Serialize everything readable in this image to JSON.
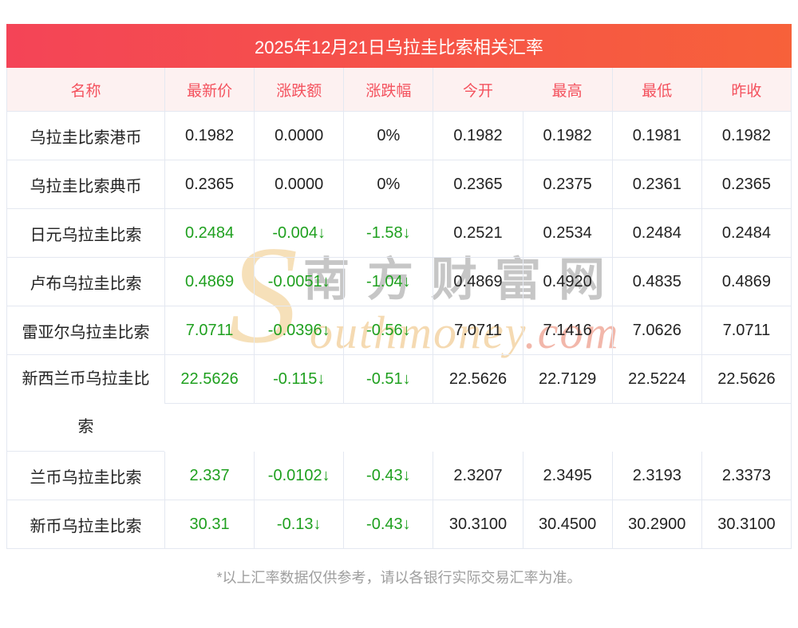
{
  "banner": {
    "title": "2025年12月21日乌拉圭比索相关汇率"
  },
  "table": {
    "columns": [
      "名称",
      "最新价",
      "涨跌额",
      "涨跌幅",
      "今开",
      "最高",
      "最低",
      "昨收"
    ],
    "rows": [
      {
        "name": "乌拉圭比索港币",
        "latest": "0.1982",
        "change": "0.0000",
        "change_pct": "0%",
        "open": "0.1982",
        "high": "0.1982",
        "low": "0.1981",
        "prev_close": "0.1982",
        "trend": "flat"
      },
      {
        "name": "乌拉圭比索典币",
        "latest": "0.2365",
        "change": "0.0000",
        "change_pct": "0%",
        "open": "0.2365",
        "high": "0.2375",
        "low": "0.2361",
        "prev_close": "0.2365",
        "trend": "flat"
      },
      {
        "name": "日元乌拉圭比索",
        "latest": "0.2484",
        "change": "-0.004↓",
        "change_pct": "-1.58↓",
        "open": "0.2521",
        "high": "0.2534",
        "low": "0.2484",
        "prev_close": "0.2484",
        "trend": "down"
      },
      {
        "name": "卢布乌拉圭比索",
        "latest": "0.4869",
        "change": "-0.0051↓",
        "change_pct": "-1.04↓",
        "open": "0.4869",
        "high": "0.4920",
        "low": "0.4835",
        "prev_close": "0.4869",
        "trend": "down"
      },
      {
        "name": "雷亚尔乌拉圭比索",
        "latest": "7.0711",
        "change": "-0.0396↓",
        "change_pct": "-0.56↓",
        "open": "7.0711",
        "high": "7.1416",
        "low": "7.0626",
        "prev_close": "7.0711",
        "trend": "down"
      },
      {
        "name": "新西兰币乌拉圭比索",
        "latest": "22.5626",
        "change": "-0.115↓",
        "change_pct": "-0.51↓",
        "open": "22.5626",
        "high": "22.7129",
        "low": "22.5224",
        "prev_close": "22.5626",
        "trend": "down"
      },
      {
        "name": "兰币乌拉圭比索",
        "latest": "2.337",
        "change": "-0.0102↓",
        "change_pct": "-0.43↓",
        "open": "2.3207",
        "high": "2.3495",
        "low": "2.3193",
        "prev_close": "2.3373",
        "trend": "down"
      },
      {
        "name": "新币乌拉圭比索",
        "latest": "30.31",
        "change": "-0.13↓",
        "change_pct": "-0.43↓",
        "open": "30.3100",
        "high": "30.4500",
        "low": "30.2900",
        "prev_close": "30.3100",
        "trend": "down"
      }
    ]
  },
  "watermark": {
    "initial": "S",
    "site_name_cn": "南方财富网",
    "site_name_en": "outhmoney",
    "suffix": ".com"
  },
  "footer": {
    "note": "*以上汇率数据仅供参考，请以各银行实际交易汇率为准。"
  },
  "colors": {
    "banner_from": "#f4четы4457",
    "banner_gradient_from": "#f44457",
    "banner_gradient_to": "#f7613a",
    "header_bg": "#fdf1f1",
    "header_text": "#f4525e",
    "down": "#1fa01f",
    "border": "#e4e8f1",
    "text": "#222222",
    "footer_text": "#9e9e9e"
  }
}
